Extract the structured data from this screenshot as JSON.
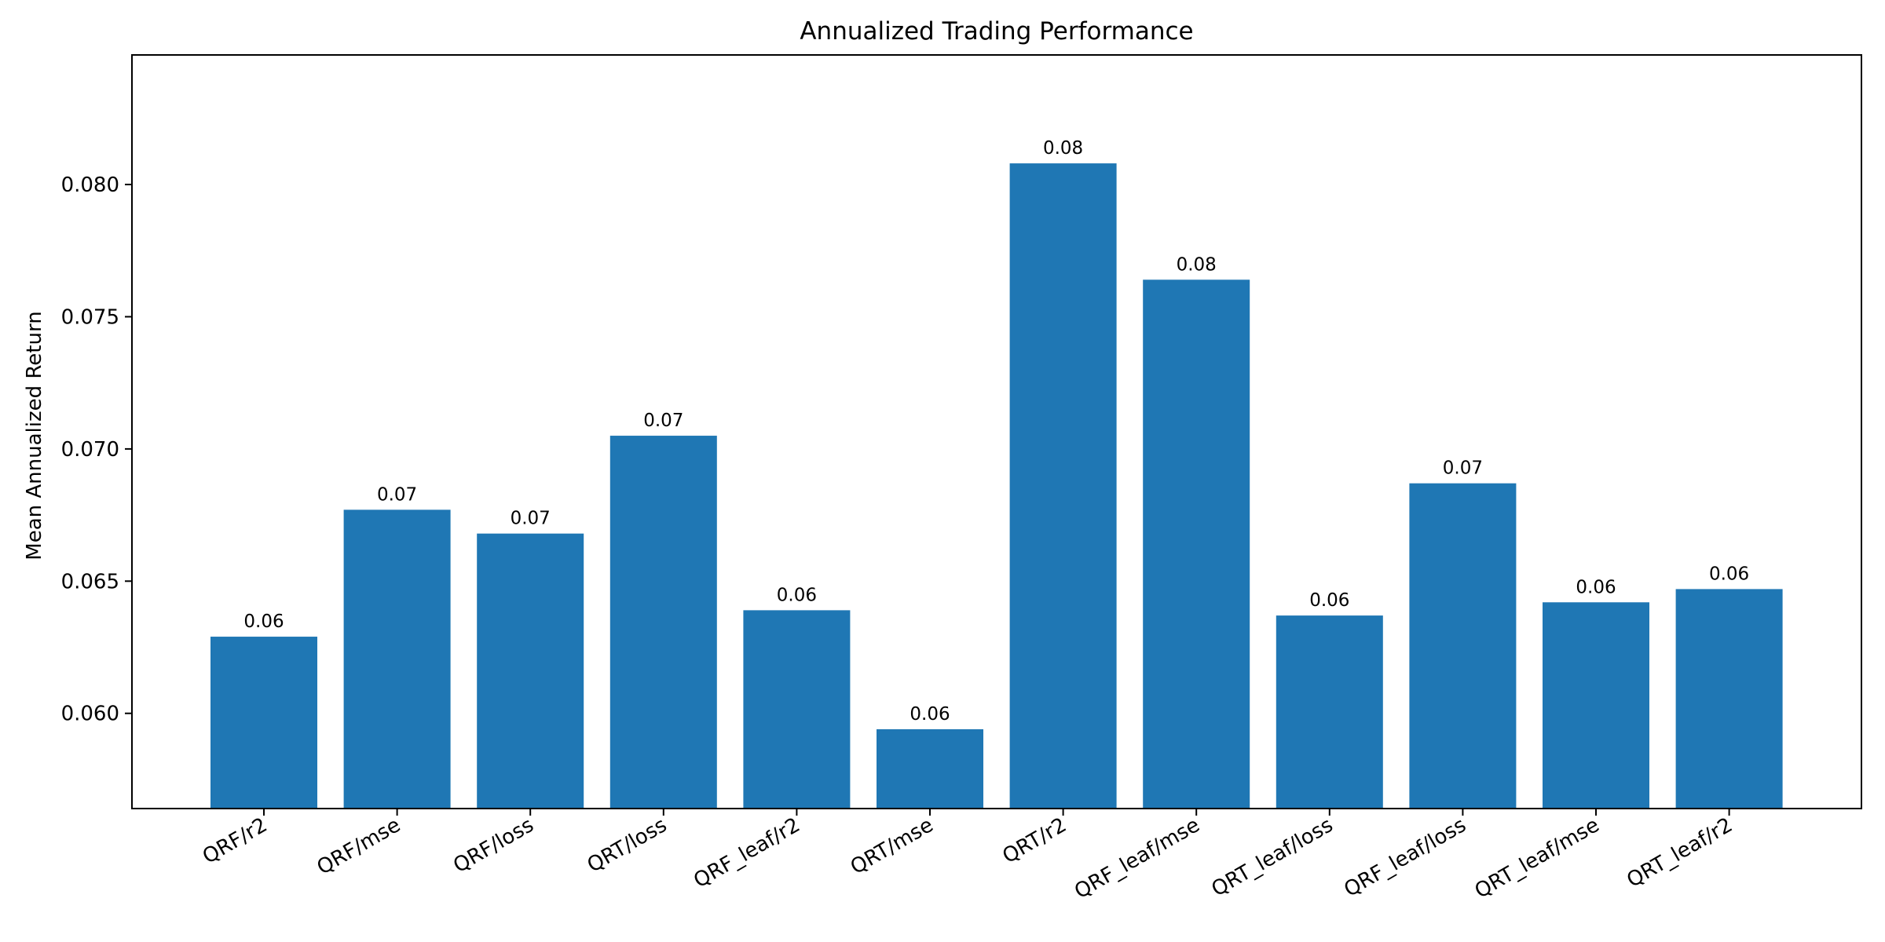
{
  "chart_data": {
    "type": "bar",
    "title": "Annualized Trading Performance",
    "xlabel": "",
    "ylabel": "Mean Annualized Return",
    "categories": [
      "QRF/r2",
      "QRF/mse",
      "QRF/loss",
      "QRT/loss",
      "QRF_leaf/r2",
      "QRT/mse",
      "QRT/r2",
      "QRF_leaf/mse",
      "QRT_leaf/loss",
      "QRF_leaf/loss",
      "QRT_leaf/mse",
      "QRT_leaf/r2"
    ],
    "values": [
      0.0629,
      0.0677,
      0.0668,
      0.0705,
      0.0639,
      0.0594,
      0.0808,
      0.0764,
      0.0637,
      0.0687,
      0.0642,
      0.0647
    ],
    "data_labels": [
      "0.06",
      "0.07",
      "0.07",
      "0.07",
      "0.06",
      "0.06",
      "0.08",
      "0.08",
      "0.06",
      "0.07",
      "0.06",
      "0.06"
    ],
    "yticks": [
      0.06,
      0.065,
      0.07,
      0.075,
      0.08
    ],
    "ytick_labels": [
      "0.060",
      "0.065",
      "0.070",
      "0.075",
      "0.080"
    ],
    "ylim": [
      0.0564,
      0.0849
    ],
    "grid": false,
    "legend": "none",
    "bar_color": "#1f77b4"
  }
}
